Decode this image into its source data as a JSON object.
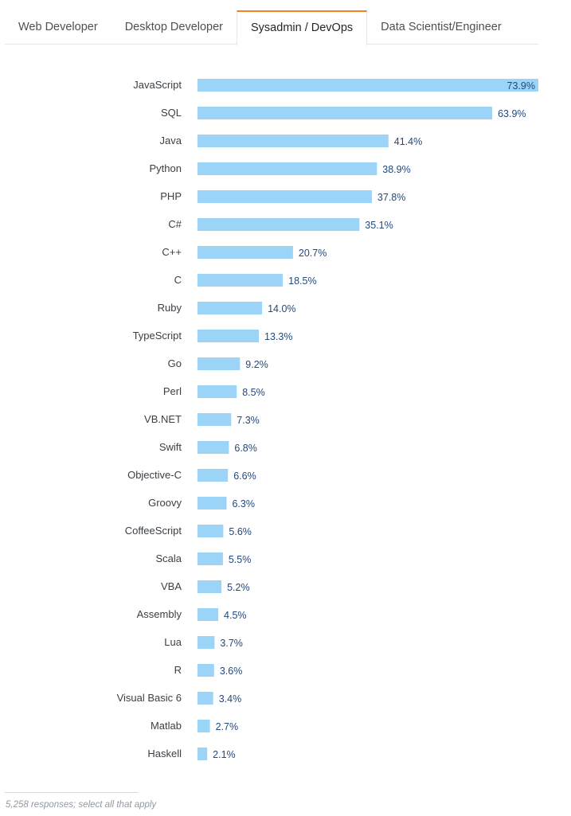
{
  "tabs": [
    {
      "label": "Web Developer",
      "active": false
    },
    {
      "label": "Desktop Developer",
      "active": false
    },
    {
      "label": "Sysadmin / DevOps",
      "active": true
    },
    {
      "label": "Data Scientist/Engineer",
      "active": false
    }
  ],
  "colors": {
    "bar": "#9cd4f8",
    "value_text": "#22497d",
    "tab_accent": "#f48024"
  },
  "chart_data": {
    "type": "bar",
    "orientation": "horizontal",
    "categories": [
      "JavaScript",
      "SQL",
      "Java",
      "Python",
      "PHP",
      "C#",
      "C++",
      "C",
      "Ruby",
      "TypeScript",
      "Go",
      "Perl",
      "VB.NET",
      "Swift",
      "Objective-C",
      "Groovy",
      "CoffeeScript",
      "Scala",
      "VBA",
      "Assembly",
      "Lua",
      "R",
      "Visual Basic 6",
      "Matlab",
      "Haskell"
    ],
    "values": [
      73.9,
      63.9,
      41.4,
      38.9,
      37.8,
      35.1,
      20.7,
      18.5,
      14.0,
      13.3,
      9.2,
      8.5,
      7.3,
      6.8,
      6.6,
      6.3,
      5.6,
      5.5,
      5.2,
      4.5,
      3.7,
      3.6,
      3.4,
      2.7,
      2.1
    ],
    "value_labels": [
      "73.9%",
      "63.9%",
      "41.4%",
      "38.9%",
      "37.8%",
      "35.1%",
      "20.7%",
      "18.5%",
      "14.0%",
      "13.3%",
      "9.2%",
      "8.5%",
      "7.3%",
      "6.8%",
      "6.6%",
      "6.3%",
      "5.6%",
      "5.5%",
      "5.2%",
      "4.5%",
      "3.7%",
      "3.6%",
      "3.4%",
      "2.7%",
      "2.1%"
    ],
    "xlim": [
      0,
      73.9
    ],
    "grid": false,
    "title": "",
    "xlabel": "",
    "ylabel": ""
  },
  "footnote": "5,258 responses; select all that apply"
}
